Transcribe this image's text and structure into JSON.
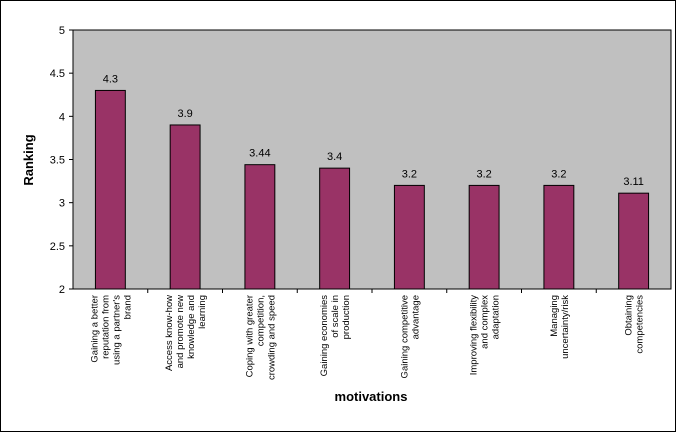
{
  "chart_data": {
    "type": "bar",
    "title": "",
    "xlabel": "motivations",
    "ylabel": "Ranking",
    "ylim": [
      2,
      5
    ],
    "yticks": [
      "2",
      "2.5",
      "3",
      "3.5",
      "4",
      "4.5",
      "5"
    ],
    "categories": [
      [
        "Gaining a better",
        "reputation from",
        "using a partner's",
        "brand"
      ],
      [
        "Access know-how",
        "and promote new",
        "knowledge and",
        "learning"
      ],
      [
        "Coping with greater",
        "competition,",
        "crowding and speed"
      ],
      [
        "Gaining economies",
        "of scale in",
        "production"
      ],
      [
        "Gaining competitive",
        "advantage"
      ],
      [
        "Improving flexibility",
        "and complex",
        "adaptation"
      ],
      [
        "Managing",
        "uncertainty/risk"
      ],
      [
        "Obtaining",
        "competencies"
      ]
    ],
    "values": [
      4.3,
      3.9,
      3.44,
      3.4,
      3.2,
      3.2,
      3.2,
      3.11
    ],
    "data_labels": [
      "4.3",
      "3.9",
      "3.44",
      "3.4",
      "3.2",
      "3.2",
      "3.2",
      "3.11"
    ],
    "grid": false,
    "legend": "none",
    "colors": {
      "bar_fill": "#993366",
      "bar_stroke": "#000000",
      "plot_background": "#c0c0c0",
      "chart_background": "#ffffff"
    }
  }
}
